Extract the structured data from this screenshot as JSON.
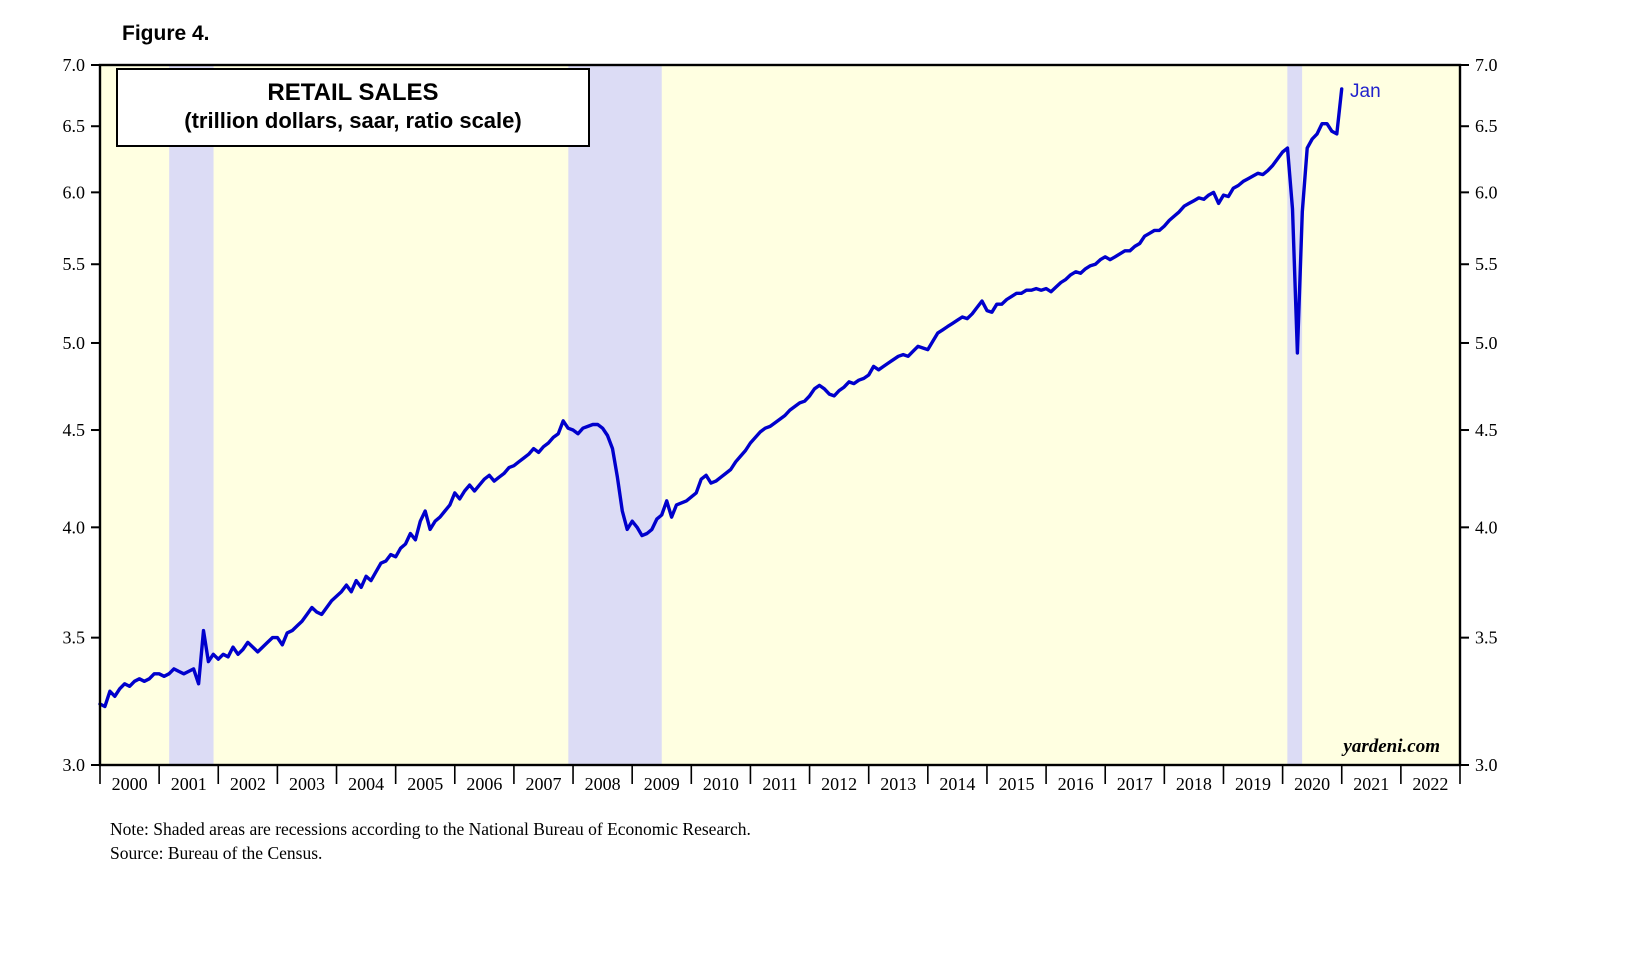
{
  "chart_data": {
    "type": "line",
    "figure_label": "Figure 4.",
    "title": "RETAIL SALES",
    "subtitle": "(trillion dollars, saar, ratio scale)",
    "end_label": "Jan",
    "watermark": "yardeni.com",
    "note": "Note: Shaded areas are recessions according to the National Bureau of Economic Research.",
    "source": "Source: Bureau of the Census.",
    "y_scale": "log",
    "y_range": [
      3.0,
      7.0
    ],
    "y_ticks": [
      3.0,
      3.5,
      4.0,
      4.5,
      5.0,
      5.5,
      6.0,
      6.5,
      7.0
    ],
    "x_start_year": 2000,
    "x_end_year": 2023,
    "x_tick_years": [
      2000,
      2001,
      2002,
      2003,
      2004,
      2005,
      2006,
      2007,
      2008,
      2009,
      2010,
      2011,
      2012,
      2013,
      2014,
      2015,
      2016,
      2017,
      2018,
      2019,
      2020,
      2021,
      2022
    ],
    "grid": "off",
    "legend": "none",
    "line_color": "#0000CC",
    "plot_bg": "#FFFFE1",
    "recession_color": "#DCDCF5",
    "recessions": [
      {
        "start": 2001.17,
        "end": 2001.92
      },
      {
        "start": 2007.92,
        "end": 2009.5
      },
      {
        "start": 2020.08,
        "end": 2020.33
      }
    ],
    "series": [
      {
        "name": "Retail Sales",
        "frequency": "monthly",
        "start": "2000-01",
        "end": "2021-01",
        "values": [
          3.23,
          3.22,
          3.28,
          3.26,
          3.29,
          3.31,
          3.3,
          3.32,
          3.33,
          3.32,
          3.33,
          3.35,
          3.35,
          3.34,
          3.35,
          3.37,
          3.36,
          3.35,
          3.36,
          3.37,
          3.31,
          3.53,
          3.4,
          3.43,
          3.41,
          3.43,
          3.42,
          3.46,
          3.43,
          3.45,
          3.48,
          3.46,
          3.44,
          3.46,
          3.48,
          3.5,
          3.5,
          3.47,
          3.52,
          3.53,
          3.55,
          3.57,
          3.6,
          3.63,
          3.61,
          3.6,
          3.63,
          3.66,
          3.68,
          3.7,
          3.73,
          3.7,
          3.75,
          3.72,
          3.77,
          3.75,
          3.79,
          3.83,
          3.84,
          3.87,
          3.86,
          3.9,
          3.92,
          3.97,
          3.94,
          4.03,
          4.08,
          3.99,
          4.03,
          4.05,
          4.08,
          4.11,
          4.17,
          4.14,
          4.18,
          4.21,
          4.18,
          4.21,
          4.24,
          4.26,
          4.23,
          4.25,
          4.27,
          4.3,
          4.31,
          4.33,
          4.35,
          4.37,
          4.4,
          4.38,
          4.41,
          4.43,
          4.46,
          4.48,
          4.55,
          4.51,
          4.5,
          4.48,
          4.51,
          4.52,
          4.53,
          4.53,
          4.51,
          4.47,
          4.4,
          4.25,
          4.08,
          3.99,
          4.03,
          4.0,
          3.96,
          3.97,
          3.99,
          4.04,
          4.06,
          4.13,
          4.05,
          4.11,
          4.12,
          4.13,
          4.15,
          4.17,
          4.24,
          4.26,
          4.22,
          4.23,
          4.25,
          4.27,
          4.29,
          4.33,
          4.36,
          4.39,
          4.43,
          4.46,
          4.49,
          4.51,
          4.52,
          4.54,
          4.56,
          4.58,
          4.61,
          4.63,
          4.65,
          4.66,
          4.69,
          4.73,
          4.75,
          4.73,
          4.7,
          4.69,
          4.72,
          4.74,
          4.77,
          4.76,
          4.78,
          4.79,
          4.81,
          4.86,
          4.84,
          4.86,
          4.88,
          4.9,
          4.92,
          4.93,
          4.92,
          4.95,
          4.98,
          4.97,
          4.96,
          5.01,
          5.06,
          5.08,
          5.1,
          5.12,
          5.14,
          5.16,
          5.15,
          5.18,
          5.22,
          5.26,
          5.2,
          5.19,
          5.24,
          5.24,
          5.27,
          5.29,
          5.31,
          5.31,
          5.33,
          5.33,
          5.34,
          5.33,
          5.34,
          5.32,
          5.35,
          5.38,
          5.4,
          5.43,
          5.45,
          5.44,
          5.47,
          5.49,
          5.5,
          5.53,
          5.55,
          5.53,
          5.55,
          5.57,
          5.59,
          5.59,
          5.62,
          5.64,
          5.69,
          5.71,
          5.73,
          5.73,
          5.76,
          5.8,
          5.83,
          5.86,
          5.9,
          5.92,
          5.94,
          5.96,
          5.95,
          5.98,
          6.0,
          5.92,
          5.98,
          5.97,
          6.03,
          6.05,
          6.08,
          6.1,
          6.12,
          6.14,
          6.13,
          6.16,
          6.2,
          6.25,
          6.3,
          6.33,
          5.88,
          4.94,
          5.86,
          6.33,
          6.4,
          6.44,
          6.52,
          6.52,
          6.46,
          6.44,
          6.8
        ]
      }
    ]
  }
}
